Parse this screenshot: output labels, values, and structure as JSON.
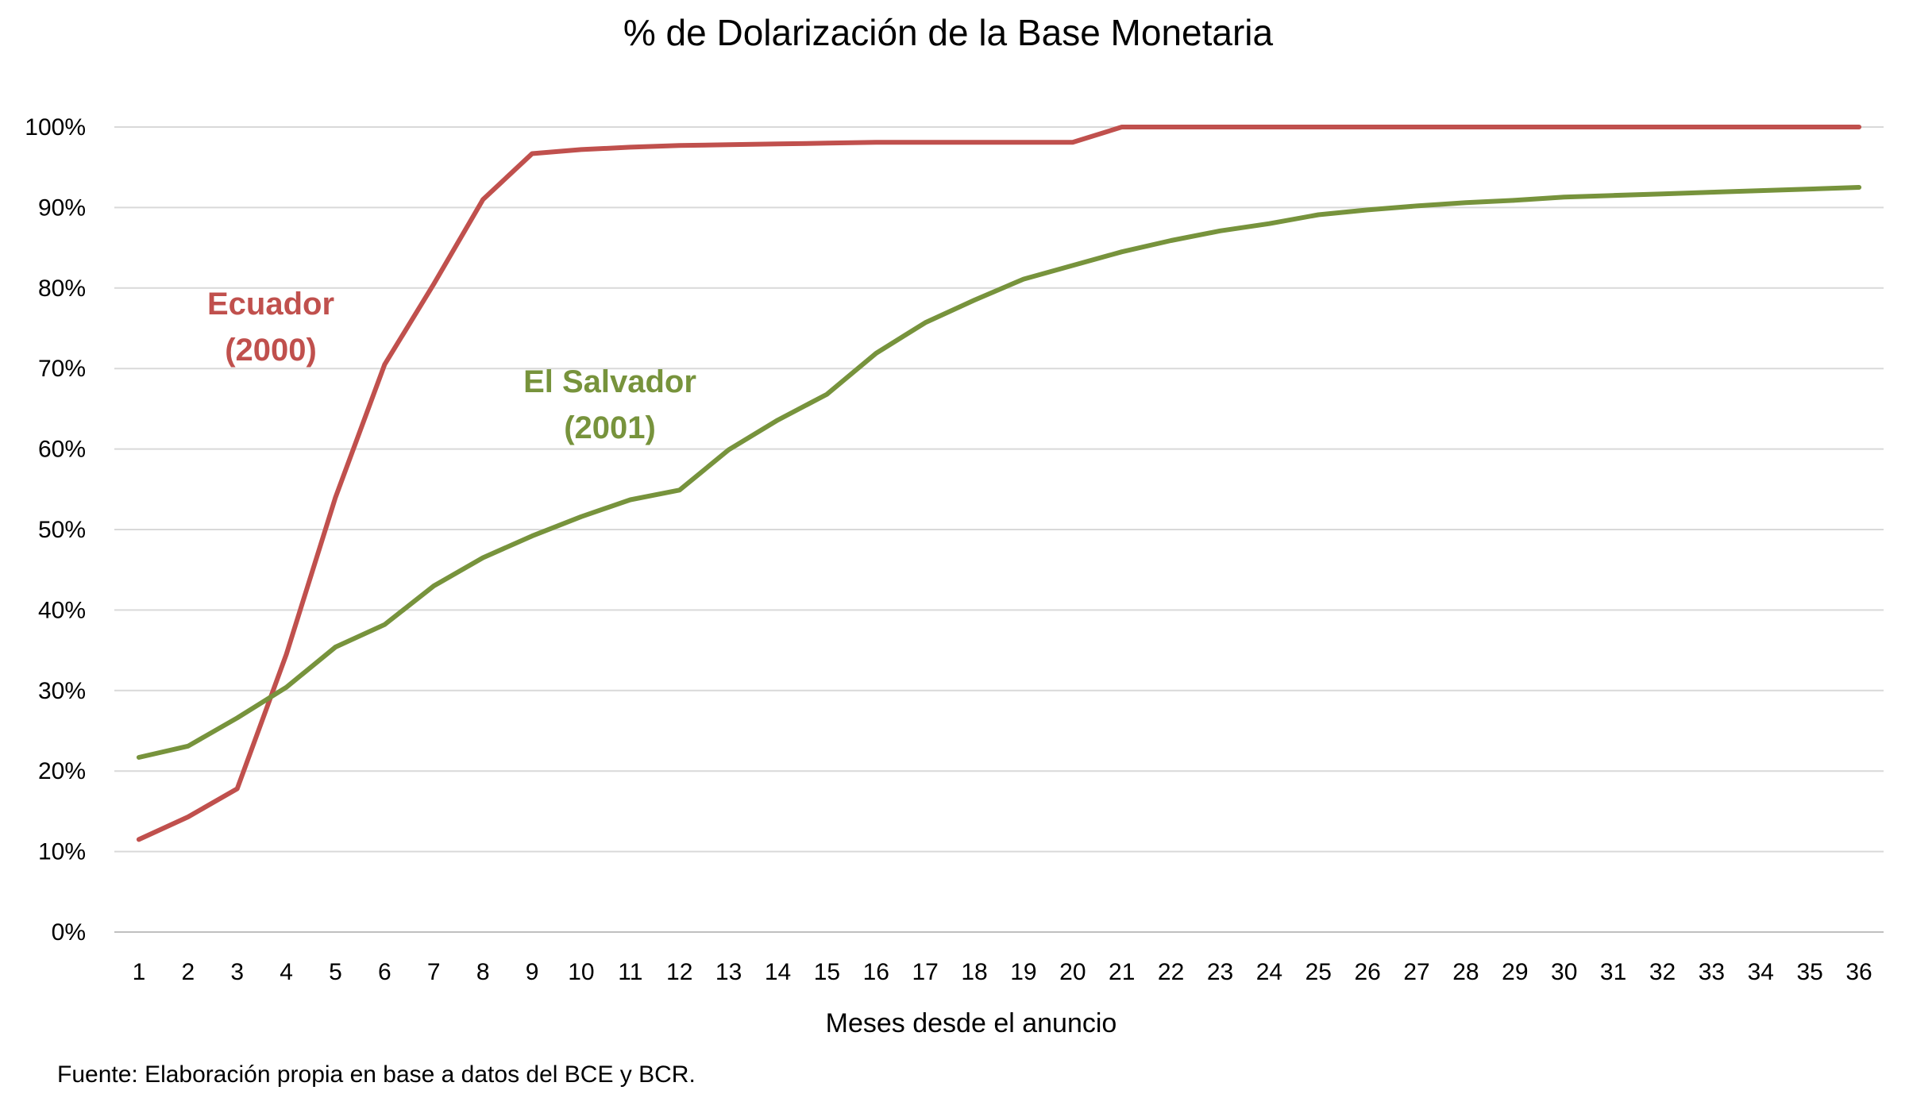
{
  "chart_data": {
    "type": "line",
    "title": "% de Dolarización de la Base Monetaria",
    "xlabel": "Meses desde el anuncio",
    "ylabel": "",
    "source": "Fuente: Elaboración propia en base a datos del BCE y BCR.",
    "x": [
      1,
      2,
      3,
      4,
      5,
      6,
      7,
      8,
      9,
      10,
      11,
      12,
      13,
      14,
      15,
      16,
      17,
      18,
      19,
      20,
      21,
      22,
      23,
      24,
      25,
      26,
      27,
      28,
      29,
      30,
      31,
      32,
      33,
      34,
      35,
      36
    ],
    "ylim": [
      0,
      100
    ],
    "yticks": [
      0,
      10,
      20,
      30,
      40,
      50,
      60,
      70,
      80,
      90,
      100
    ],
    "ytick_labels": [
      "0%",
      "10%",
      "20%",
      "30%",
      "40%",
      "50%",
      "60%",
      "70%",
      "80%",
      "90%",
      "100%"
    ],
    "grid": true,
    "legend": "none",
    "series": [
      {
        "name": "Ecuador (2000)",
        "color": "#c0504d",
        "values": [
          11.5,
          14.3,
          17.8,
          34.5,
          54,
          70.5,
          80.5,
          91,
          96.7,
          97.2,
          97.5,
          97.7,
          97.8,
          97.9,
          98,
          98.1,
          98.1,
          98.1,
          98.1,
          98.1,
          100,
          100,
          100,
          100,
          100,
          100,
          100,
          100,
          100,
          100,
          100,
          100,
          100,
          100,
          100,
          100
        ]
      },
      {
        "name": "El Salvador (2001)",
        "color": "#77933c",
        "values": [
          21.7,
          23.1,
          26.6,
          30.4,
          35.4,
          38.2,
          43,
          46.5,
          49.2,
          51.6,
          53.7,
          54.9,
          59.9,
          63.6,
          66.8,
          71.9,
          75.7,
          78.5,
          81.1,
          82.8,
          84.5,
          85.9,
          87.1,
          88,
          89.1,
          89.7,
          90.2,
          90.6,
          90.9,
          91.3,
          91.5,
          91.7,
          91.9,
          92.1,
          92.3,
          92.5
        ]
      }
    ],
    "annotations": [
      {
        "id": "ecuador",
        "lines": [
          "Ecuador",
          "(2000)"
        ],
        "color": "#c0504d"
      },
      {
        "id": "elsalvador",
        "lines": [
          "El Salvador",
          "(2001)"
        ],
        "color": "#77933c"
      }
    ]
  }
}
